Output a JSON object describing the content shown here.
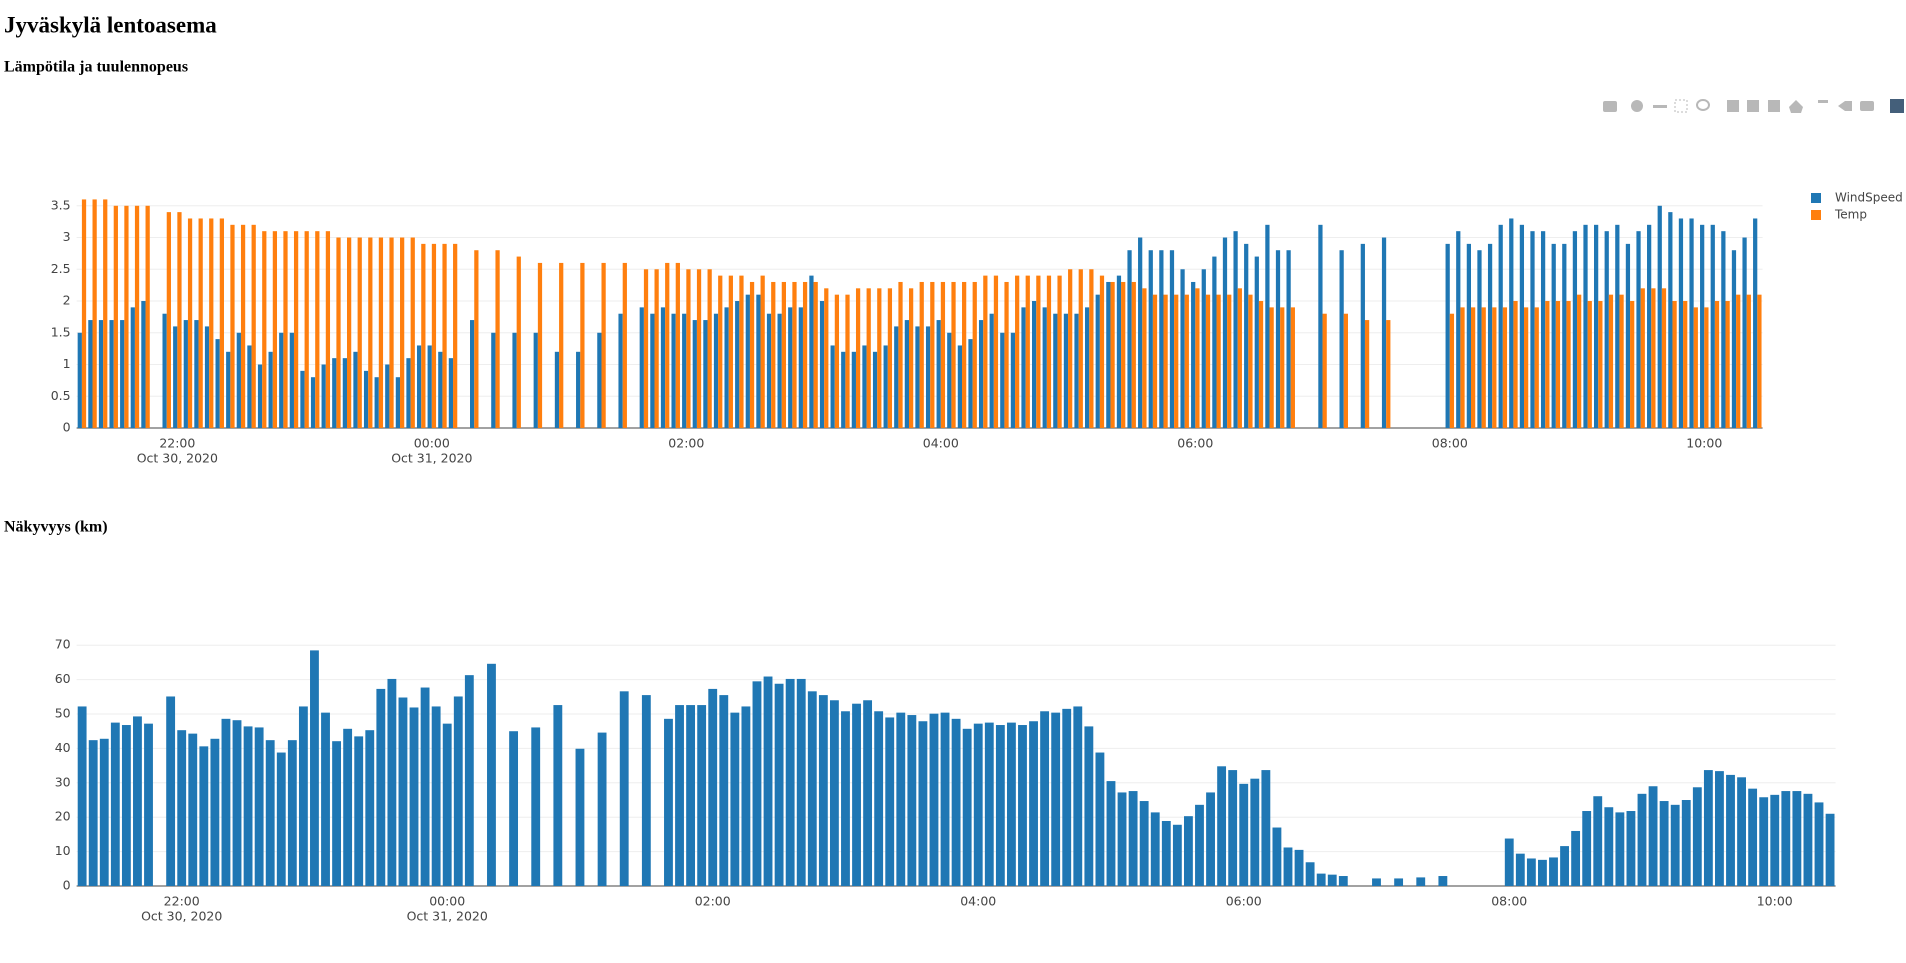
{
  "title": "Jyväskylä lentoasema",
  "chart_data": [
    {
      "type": "bar",
      "title": "Lämpötila ja tuulennopeus",
      "grid": true,
      "legend": "right",
      "xlim": [
        "2020-10-30 21:12:30",
        "2020-10-31 10:27:30"
      ],
      "xticks": [
        {
          "value": "2020-10-30 22:00",
          "label": [
            "22:00",
            "Oct 30, 2020"
          ]
        },
        {
          "value": "2020-10-31 00:00",
          "label": [
            "00:00",
            "Oct 31, 2020"
          ]
        },
        {
          "value": "2020-10-31 02:00",
          "label": [
            "02:00"
          ]
        },
        {
          "value": "2020-10-31 04:00",
          "label": [
            "04:00"
          ]
        },
        {
          "value": "2020-10-31 06:00",
          "label": [
            "06:00"
          ]
        },
        {
          "value": "2020-10-31 08:00",
          "label": [
            "08:00"
          ]
        },
        {
          "value": "2020-10-31 10:00",
          "label": [
            "10:00"
          ]
        }
      ],
      "ylim": [
        0,
        3.78
      ],
      "yticks": [
        0,
        0.5,
        1,
        1.5,
        2,
        2.5,
        3,
        3.5
      ],
      "x": [
        "2020-10-30 21:15",
        "2020-10-30 21:20",
        "2020-10-30 21:25",
        "2020-10-30 21:30",
        "2020-10-30 21:35",
        "2020-10-30 21:40",
        "2020-10-30 21:45",
        "2020-10-30 21:55",
        "2020-10-30 22:00",
        "2020-10-30 22:05",
        "2020-10-30 22:10",
        "2020-10-30 22:15",
        "2020-10-30 22:20",
        "2020-10-30 22:25",
        "2020-10-30 22:30",
        "2020-10-30 22:35",
        "2020-10-30 22:40",
        "2020-10-30 22:45",
        "2020-10-30 22:50",
        "2020-10-30 22:55",
        "2020-10-30 23:00",
        "2020-10-30 23:05",
        "2020-10-30 23:10",
        "2020-10-30 23:15",
        "2020-10-30 23:20",
        "2020-10-30 23:25",
        "2020-10-30 23:30",
        "2020-10-30 23:35",
        "2020-10-30 23:40",
        "2020-10-30 23:45",
        "2020-10-30 23:50",
        "2020-10-30 23:55",
        "2020-10-31 00:00",
        "2020-10-31 00:05",
        "2020-10-31 00:10",
        "2020-10-31 00:20",
        "2020-10-31 00:30",
        "2020-10-31 00:40",
        "2020-10-31 00:50",
        "2020-10-31 01:00",
        "2020-10-31 01:10",
        "2020-10-31 01:20",
        "2020-10-31 01:30",
        "2020-10-31 01:40",
        "2020-10-31 01:45",
        "2020-10-31 01:50",
        "2020-10-31 01:55",
        "2020-10-31 02:00",
        "2020-10-31 02:05",
        "2020-10-31 02:10",
        "2020-10-31 02:15",
        "2020-10-31 02:20",
        "2020-10-31 02:25",
        "2020-10-31 02:30",
        "2020-10-31 02:35",
        "2020-10-31 02:40",
        "2020-10-31 02:45",
        "2020-10-31 02:50",
        "2020-10-31 02:55",
        "2020-10-31 03:00",
        "2020-10-31 03:05",
        "2020-10-31 03:10",
        "2020-10-31 03:15",
        "2020-10-31 03:20",
        "2020-10-31 03:25",
        "2020-10-31 03:30",
        "2020-10-31 03:35",
        "2020-10-31 03:40",
        "2020-10-31 03:45",
        "2020-10-31 03:50",
        "2020-10-31 03:55",
        "2020-10-31 04:00",
        "2020-10-31 04:05",
        "2020-10-31 04:10",
        "2020-10-31 04:15",
        "2020-10-31 04:20",
        "2020-10-31 04:25",
        "2020-10-31 04:30",
        "2020-10-31 04:35",
        "2020-10-31 04:40",
        "2020-10-31 04:45",
        "2020-10-31 04:50",
        "2020-10-31 04:55",
        "2020-10-31 05:00",
        "2020-10-31 05:05",
        "2020-10-31 05:10",
        "2020-10-31 05:15",
        "2020-10-31 05:20",
        "2020-10-31 05:25",
        "2020-10-31 05:30",
        "2020-10-31 05:35",
        "2020-10-31 05:40",
        "2020-10-31 05:45",
        "2020-10-31 05:50",
        "2020-10-31 05:55",
        "2020-10-31 06:00",
        "2020-10-31 06:05",
        "2020-10-31 06:10",
        "2020-10-31 06:15",
        "2020-10-31 06:20",
        "2020-10-31 06:25",
        "2020-10-31 06:30",
        "2020-10-31 06:35",
        "2020-10-31 06:40",
        "2020-10-31 06:45",
        "2020-10-31 07:00",
        "2020-10-31 07:10",
        "2020-10-31 07:20",
        "2020-10-31 07:30",
        "2020-10-31 08:00",
        "2020-10-31 08:05",
        "2020-10-31 08:10",
        "2020-10-31 08:15",
        "2020-10-31 08:20",
        "2020-10-31 08:25",
        "2020-10-31 08:30",
        "2020-10-31 08:35",
        "2020-10-31 08:40",
        "2020-10-31 08:45",
        "2020-10-31 08:50",
        "2020-10-31 08:55",
        "2020-10-31 09:00",
        "2020-10-31 09:05",
        "2020-10-31 09:10",
        "2020-10-31 09:15",
        "2020-10-31 09:20",
        "2020-10-31 09:25",
        "2020-10-31 09:30",
        "2020-10-31 09:35",
        "2020-10-31 09:40",
        "2020-10-31 09:45",
        "2020-10-31 09:50",
        "2020-10-31 09:55",
        "2020-10-31 10:00",
        "2020-10-31 10:05",
        "2020-10-31 10:10",
        "2020-10-31 10:15",
        "2020-10-31 10:20",
        "2020-10-31 10:25"
      ],
      "series": [
        {
          "name": "WindSpeed",
          "color": "#1f77b4",
          "values": [
            1.5,
            1.7,
            1.7,
            1.7,
            1.7,
            1.9,
            2.0,
            1.8,
            1.6,
            1.7,
            1.7,
            1.6,
            1.4,
            1.2,
            1.5,
            1.3,
            1.0,
            1.2,
            1.5,
            1.5,
            0.9,
            0.8,
            1.0,
            1.1,
            1.1,
            1.2,
            0.9,
            0.8,
            1.0,
            0.8,
            1.1,
            1.3,
            1.3,
            1.2,
            1.1,
            1.7,
            1.5,
            1.5,
            1.5,
            1.2,
            1.2,
            1.5,
            1.8,
            1.9,
            1.8,
            1.9,
            1.8,
            1.8,
            1.7,
            1.7,
            1.8,
            1.9,
            2.0,
            2.1,
            2.1,
            1.8,
            1.8,
            1.9,
            1.9,
            2.4,
            2.0,
            1.3,
            1.2,
            1.2,
            1.3,
            1.2,
            1.3,
            1.6,
            1.7,
            1.6,
            1.6,
            1.7,
            1.5,
            1.3,
            1.4,
            1.7,
            1.8,
            1.5,
            1.5,
            1.9,
            2.0,
            1.9,
            1.8,
            1.8,
            1.8,
            1.9,
            2.1,
            2.3,
            2.4,
            2.8,
            3.0,
            2.8,
            2.8,
            2.8,
            2.5,
            2.3,
            2.5,
            2.7,
            3.0,
            3.1,
            2.9,
            2.7,
            3.2,
            2.8,
            2.8,
            3.2,
            2.8,
            2.9,
            3.0,
            2.9,
            3.1,
            2.9,
            2.8,
            2.9,
            3.2,
            3.3,
            3.2,
            3.1,
            3.1,
            2.9,
            2.9,
            3.1,
            3.2,
            3.2,
            3.1,
            3.2,
            2.9,
            3.1,
            3.2,
            3.5,
            3.4,
            3.3,
            3.3,
            3.2,
            3.2,
            3.1,
            2.8,
            3.0,
            3.3
          ]
        },
        {
          "name": "Temp",
          "color": "#ff7f0e",
          "values": [
            3.6,
            3.6,
            3.6,
            3.5,
            3.5,
            3.5,
            3.5,
            3.4,
            3.4,
            3.3,
            3.3,
            3.3,
            3.3,
            3.2,
            3.2,
            3.2,
            3.1,
            3.1,
            3.1,
            3.1,
            3.1,
            3.1,
            3.1,
            3.0,
            3.0,
            3.0,
            3.0,
            3.0,
            3.0,
            3.0,
            3.0,
            2.9,
            2.9,
            2.9,
            2.9,
            2.8,
            2.8,
            2.7,
            2.6,
            2.6,
            2.6,
            2.6,
            2.6,
            2.5,
            2.5,
            2.6,
            2.6,
            2.5,
            2.5,
            2.5,
            2.4,
            2.4,
            2.4,
            2.3,
            2.4,
            2.3,
            2.3,
            2.3,
            2.3,
            2.3,
            2.2,
            2.1,
            2.1,
            2.2,
            2.2,
            2.2,
            2.2,
            2.3,
            2.2,
            2.3,
            2.3,
            2.3,
            2.3,
            2.3,
            2.3,
            2.4,
            2.4,
            2.3,
            2.4,
            2.4,
            2.4,
            2.4,
            2.4,
            2.5,
            2.5,
            2.5,
            2.4,
            2.3,
            2.3,
            2.3,
            2.2,
            2.1,
            2.1,
            2.1,
            2.1,
            2.2,
            2.1,
            2.1,
            2.1,
            2.2,
            2.1,
            2.0,
            1.9,
            1.9,
            1.9,
            1.8,
            1.8,
            1.7,
            1.7,
            1.8,
            1.9,
            1.9,
            1.9,
            1.9,
            1.9,
            2.0,
            1.9,
            1.9,
            2.0,
            2.0,
            2.0,
            2.1,
            2.0,
            2.0,
            2.1,
            2.1,
            2.0,
            2.2,
            2.2,
            2.2,
            2.0,
            2.0,
            1.9,
            1.9,
            2.0,
            2.0,
            2.1,
            2.1,
            2.1
          ]
        }
      ]
    },
    {
      "type": "bar",
      "title": "Näkyvyys (km)",
      "grid": true,
      "color": "#1f77b4",
      "xlim": [
        "2020-10-30 21:12:30",
        "2020-10-31 10:27:30"
      ],
      "xticks": [
        {
          "value": "2020-10-30 22:00",
          "label": [
            "22:00",
            "Oct 30, 2020"
          ]
        },
        {
          "value": "2020-10-31 00:00",
          "label": [
            "00:00",
            "Oct 31, 2020"
          ]
        },
        {
          "value": "2020-10-31 02:00",
          "label": [
            "02:00"
          ]
        },
        {
          "value": "2020-10-31 04:00",
          "label": [
            "04:00"
          ]
        },
        {
          "value": "2020-10-31 06:00",
          "label": [
            "06:00"
          ]
        },
        {
          "value": "2020-10-31 08:00",
          "label": [
            "08:00"
          ]
        },
        {
          "value": "2020-10-31 10:00",
          "label": [
            "10:00"
          ]
        }
      ],
      "ylim": [
        0,
        72.1
      ],
      "yticks": [
        0,
        10,
        20,
        30,
        40,
        50,
        60,
        70
      ],
      "x": [
        "2020-10-30 21:15",
        "2020-10-30 21:20",
        "2020-10-30 21:25",
        "2020-10-30 21:30",
        "2020-10-30 21:35",
        "2020-10-30 21:40",
        "2020-10-30 21:45",
        "2020-10-30 21:55",
        "2020-10-30 22:00",
        "2020-10-30 22:05",
        "2020-10-30 22:10",
        "2020-10-30 22:15",
        "2020-10-30 22:20",
        "2020-10-30 22:25",
        "2020-10-30 22:30",
        "2020-10-30 22:35",
        "2020-10-30 22:40",
        "2020-10-30 22:45",
        "2020-10-30 22:50",
        "2020-10-30 22:55",
        "2020-10-30 23:00",
        "2020-10-30 23:05",
        "2020-10-30 23:10",
        "2020-10-30 23:15",
        "2020-10-30 23:20",
        "2020-10-30 23:25",
        "2020-10-30 23:30",
        "2020-10-30 23:35",
        "2020-10-30 23:40",
        "2020-10-30 23:45",
        "2020-10-30 23:50",
        "2020-10-30 23:55",
        "2020-10-31 00:00",
        "2020-10-31 00:05",
        "2020-10-31 00:10",
        "2020-10-31 00:20",
        "2020-10-31 00:30",
        "2020-10-31 00:40",
        "2020-10-31 00:50",
        "2020-10-31 01:00",
        "2020-10-31 01:10",
        "2020-10-31 01:20",
        "2020-10-31 01:30",
        "2020-10-31 01:40",
        "2020-10-31 01:45",
        "2020-10-31 01:50",
        "2020-10-31 01:55",
        "2020-10-31 02:00",
        "2020-10-31 02:05",
        "2020-10-31 02:10",
        "2020-10-31 02:15",
        "2020-10-31 02:20",
        "2020-10-31 02:25",
        "2020-10-31 02:30",
        "2020-10-31 02:35",
        "2020-10-31 02:40",
        "2020-10-31 02:45",
        "2020-10-31 02:50",
        "2020-10-31 02:55",
        "2020-10-31 03:00",
        "2020-10-31 03:05",
        "2020-10-31 03:10",
        "2020-10-31 03:15",
        "2020-10-31 03:20",
        "2020-10-31 03:25",
        "2020-10-31 03:30",
        "2020-10-31 03:35",
        "2020-10-31 03:40",
        "2020-10-31 03:45",
        "2020-10-31 03:50",
        "2020-10-31 03:55",
        "2020-10-31 04:00",
        "2020-10-31 04:05",
        "2020-10-31 04:10",
        "2020-10-31 04:15",
        "2020-10-31 04:20",
        "2020-10-31 04:25",
        "2020-10-31 04:30",
        "2020-10-31 04:35",
        "2020-10-31 04:40",
        "2020-10-31 04:45",
        "2020-10-31 04:50",
        "2020-10-31 04:55",
        "2020-10-31 05:00",
        "2020-10-31 05:05",
        "2020-10-31 05:10",
        "2020-10-31 05:15",
        "2020-10-31 05:20",
        "2020-10-31 05:25",
        "2020-10-31 05:30",
        "2020-10-31 05:35",
        "2020-10-31 05:40",
        "2020-10-31 05:45",
        "2020-10-31 05:50",
        "2020-10-31 05:55",
        "2020-10-31 06:00",
        "2020-10-31 06:05",
        "2020-10-31 06:10",
        "2020-10-31 06:15",
        "2020-10-31 06:20",
        "2020-10-31 06:25",
        "2020-10-31 06:30",
        "2020-10-31 06:35",
        "2020-10-31 06:40",
        "2020-10-31 06:45",
        "2020-10-31 07:00",
        "2020-10-31 07:10",
        "2020-10-31 07:20",
        "2020-10-31 07:30",
        "2020-10-31 08:00",
        "2020-10-31 08:05",
        "2020-10-31 08:10",
        "2020-10-31 08:15",
        "2020-10-31 08:20",
        "2020-10-31 08:25",
        "2020-10-31 08:30",
        "2020-10-31 08:35",
        "2020-10-31 08:40",
        "2020-10-31 08:45",
        "2020-10-31 08:50",
        "2020-10-31 08:55",
        "2020-10-31 09:00",
        "2020-10-31 09:05",
        "2020-10-31 09:10",
        "2020-10-31 09:15",
        "2020-10-31 09:20",
        "2020-10-31 09:25",
        "2020-10-31 09:30",
        "2020-10-31 09:35",
        "2020-10-31 09:40",
        "2020-10-31 09:45",
        "2020-10-31 09:50",
        "2020-10-31 09:55",
        "2020-10-31 10:00",
        "2020-10-31 10:05",
        "2020-10-31 10:10",
        "2020-10-31 10:15",
        "2020-10-31 10:20",
        "2020-10-31 10:25"
      ],
      "values": [
        52.2,
        42.4,
        42.8,
        47.5,
        46.8,
        49.3,
        47.2,
        55.1,
        45.3,
        44.3,
        40.6,
        42.8,
        48.6,
        48.2,
        46.4,
        46.1,
        42.4,
        38.8,
        42.4,
        52.2,
        68.5,
        50.4,
        42.1,
        45.7,
        43.5,
        45.3,
        57.3,
        60.2,
        54.8,
        51.9,
        57.7,
        52.2,
        47.2,
        55.1,
        61.3,
        64.6,
        45.0,
        46.1,
        52.6,
        39.9,
        44.6,
        56.6,
        55.5,
        48.6,
        52.6,
        52.6,
        52.6,
        57.3,
        55.5,
        50.4,
        52.2,
        59.5,
        60.9,
        58.8,
        60.2,
        60.2,
        56.6,
        55.5,
        54.0,
        50.8,
        53.0,
        54.0,
        50.8,
        49.0,
        50.4,
        49.7,
        47.9,
        50.1,
        50.4,
        48.6,
        45.7,
        47.2,
        47.5,
        46.8,
        47.5,
        46.8,
        47.9,
        50.8,
        50.4,
        51.5,
        52.2,
        46.4,
        38.8,
        30.5,
        27.2,
        27.6,
        24.7,
        21.4,
        18.9,
        17.8,
        20.3,
        23.6,
        27.2,
        34.8,
        33.7,
        29.7,
        31.2,
        33.7,
        17.0,
        11.2,
        10.5,
        6.9,
        3.6,
        3.3,
        2.9,
        2.2,
        2.2,
        2.5,
        2.9,
        13.8,
        9.4,
        8.0,
        7.6,
        8.3,
        11.6,
        16.0,
        21.8,
        26.1,
        22.9,
        21.4,
        21.8,
        26.8,
        29.0,
        24.7,
        23.6,
        25.0,
        28.7,
        33.7,
        33.4,
        32.3,
        31.6,
        28.3,
        25.8,
        26.5,
        27.6,
        27.6,
        26.8,
        24.3,
        21.0
      ]
    }
  ]
}
